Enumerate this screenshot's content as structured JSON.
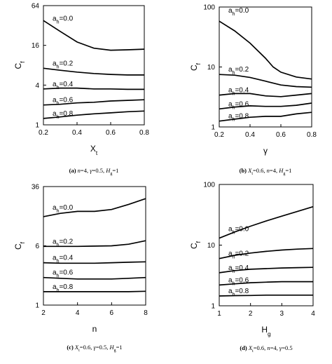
{
  "figure": {
    "panels": [
      {
        "caption": {
          "id": "(a)",
          "parts": [
            {
              "t": "n",
              "it": true
            },
            {
              "t": "=4, "
            },
            {
              "t": "γ",
              "it": true
            },
            {
              "t": "=0.5, "
            },
            {
              "t": "H",
              "it": true
            },
            {
              "t": "g",
              "sub": true
            },
            {
              "t": "=1"
            }
          ]
        },
        "chart_data": {
          "type": "line",
          "title": "",
          "xlabel": {
            "main": "X",
            "sub": "t"
          },
          "ylabel": {
            "main": "C",
            "sub": "f"
          },
          "x_ticks": [
            0.2,
            0.4,
            0.6,
            0.8
          ],
          "x_tick_labels": [
            "0.2",
            "0.4",
            "0.6",
            "0.8"
          ],
          "xlim": [
            0.2,
            0.8
          ],
          "y_scale": "log",
          "y_ticks": [
            1,
            4,
            16,
            64
          ],
          "y_tick_labels": [
            "1",
            "4",
            "16",
            "64"
          ],
          "ylim": [
            1,
            64
          ],
          "grid": false,
          "series": [
            {
              "name": "ah=0.0",
              "label": {
                "main": "a",
                "sub": "h",
                "rest": "=0.0"
              },
              "x": [
                0.2,
                0.3,
                0.4,
                0.5,
                0.6,
                0.7,
                0.8
              ],
              "y": [
                38,
                26,
                18,
                14.5,
                13.5,
                13.7,
                14
              ]
            },
            {
              "name": "ah=0.2",
              "label": {
                "main": "a",
                "sub": "h",
                "rest": "=0.2"
              },
              "x": [
                0.2,
                0.3,
                0.4,
                0.5,
                0.6,
                0.7,
                0.8
              ],
              "y": [
                7.2,
                6.7,
                6.3,
                6.0,
                5.8,
                5.7,
                5.7
              ]
            },
            {
              "name": "ah=0.4",
              "label": {
                "main": "a",
                "sub": "h",
                "rest": "=0.4"
              },
              "x": [
                0.2,
                0.3,
                0.4,
                0.5,
                0.6,
                0.7,
                0.8
              ],
              "y": [
                3.5,
                3.6,
                3.6,
                3.5,
                3.5,
                3.45,
                3.45
              ]
            },
            {
              "name": "ah=0.6",
              "label": {
                "main": "a",
                "sub": "h",
                "rest": "=0.6"
              },
              "x": [
                0.2,
                0.3,
                0.4,
                0.5,
                0.6,
                0.7,
                0.8
              ],
              "y": [
                2.0,
                2.05,
                2.15,
                2.2,
                2.3,
                2.35,
                2.4
              ]
            },
            {
              "name": "ah=0.8",
              "label": {
                "main": "a",
                "sub": "h",
                "rest": "=0.8"
              },
              "x": [
                0.2,
                0.3,
                0.4,
                0.5,
                0.6,
                0.7,
                0.8
              ],
              "y": [
                1.25,
                1.32,
                1.4,
                1.47,
                1.52,
                1.58,
                1.62
              ]
            }
          ]
        }
      },
      {
        "caption": {
          "id": "(b)",
          "parts": [
            {
              "t": "X",
              "it": true
            },
            {
              "t": "t",
              "sub": true
            },
            {
              "t": "=0.6, "
            },
            {
              "t": "n",
              "it": true
            },
            {
              "t": "=4, "
            },
            {
              "t": "H",
              "it": true
            },
            {
              "t": "g",
              "sub": true
            },
            {
              "t": "=1"
            }
          ]
        },
        "chart_data": {
          "type": "line",
          "title": "",
          "xlabel": {
            "main": "γ",
            "sub": ""
          },
          "ylabel": {
            "main": "C",
            "sub": "f"
          },
          "x_ticks": [
            0.2,
            0.4,
            0.6,
            0.8
          ],
          "x_tick_labels": [
            "0.2",
            "0.4",
            "0.6",
            "0.8"
          ],
          "xlim": [
            0.2,
            0.8
          ],
          "y_scale": "log",
          "y_ticks": [
            1,
            10,
            100
          ],
          "y_tick_labels": [
            "1",
            "10",
            "100"
          ],
          "ylim": [
            1,
            100
          ],
          "grid": false,
          "series": [
            {
              "name": "ah=0.0",
              "label": {
                "main": "a",
                "sub": "h",
                "rest": "=0.0"
              },
              "x": [
                0.2,
                0.3,
                0.4,
                0.5,
                0.55,
                0.6,
                0.7,
                0.8
              ],
              "y": [
                58,
                40,
                25,
                14,
                10,
                8.2,
                6.8,
                6.3
              ]
            },
            {
              "name": "ah=0.2",
              "label": {
                "main": "a",
                "sub": "h",
                "rest": "=0.2"
              },
              "x": [
                0.2,
                0.3,
                0.4,
                0.5,
                0.6,
                0.7,
                0.8
              ],
              "y": [
                7.5,
                7.3,
                6.7,
                5.8,
                5.0,
                4.7,
                4.6
              ]
            },
            {
              "name": "ah=0.4",
              "label": {
                "main": "a",
                "sub": "h",
                "rest": "=0.4"
              },
              "x": [
                0.2,
                0.3,
                0.4,
                0.5,
                0.6,
                0.7,
                0.8
              ],
              "y": [
                3.4,
                3.6,
                3.6,
                3.3,
                3.2,
                3.4,
                3.6
              ]
            },
            {
              "name": "ah=0.6",
              "label": {
                "main": "a",
                "sub": "h",
                "rest": "=0.6"
              },
              "x": [
                0.2,
                0.3,
                0.4,
                0.5,
                0.6,
                0.7,
                0.8
              ],
              "y": [
                2.0,
                2.15,
                2.25,
                2.2,
                2.2,
                2.3,
                2.5
              ]
            },
            {
              "name": "ah=0.8",
              "label": {
                "main": "a",
                "sub": "h",
                "rest": "=0.8"
              },
              "x": [
                0.2,
                0.3,
                0.4,
                0.5,
                0.6,
                0.7,
                0.8
              ],
              "y": [
                1.25,
                1.35,
                1.45,
                1.5,
                1.5,
                1.65,
                1.75
              ]
            }
          ]
        }
      },
      {
        "caption": {
          "id": "(c)",
          "parts": [
            {
              "t": "X",
              "it": true
            },
            {
              "t": "t",
              "sub": true
            },
            {
              "t": "=0.6, "
            },
            {
              "t": "γ",
              "it": true
            },
            {
              "t": "=0.5, "
            },
            {
              "t": "H",
              "it": true
            },
            {
              "t": "g",
              "sub": true
            },
            {
              "t": "=1"
            }
          ]
        },
        "chart_data": {
          "type": "line",
          "title": "",
          "xlabel": {
            "main": "n",
            "sub": ""
          },
          "ylabel": {
            "main": "C",
            "sub": "f"
          },
          "x_ticks": [
            2,
            4,
            6,
            8
          ],
          "x_tick_labels": [
            "2",
            "4",
            "6",
            "8"
          ],
          "xlim": [
            2,
            8
          ],
          "y_scale": "log",
          "y_ticks": [
            1,
            6,
            36
          ],
          "y_tick_labels": [
            "1",
            "6",
            "36"
          ],
          "ylim": [
            1,
            36
          ],
          "grid": false,
          "series": [
            {
              "name": "ah=0.0",
              "label": {
                "main": "a",
                "sub": "h",
                "rest": "=0.0"
              },
              "x": [
                2,
                3,
                4,
                5,
                6,
                7,
                8
              ],
              "y": [
                14.5,
                16,
                17,
                17,
                18,
                21,
                25
              ]
            },
            {
              "name": "ah=0.2",
              "label": {
                "main": "a",
                "sub": "h",
                "rest": "=0.2"
              },
              "x": [
                2,
                3,
                4,
                5,
                6,
                7,
                8
              ],
              "y": [
                5.9,
                5.9,
                5.9,
                5.95,
                6.0,
                6.3,
                7.0
              ]
            },
            {
              "name": "ah=0.4",
              "label": {
                "main": "a",
                "sub": "h",
                "rest": "=0.4"
              },
              "x": [
                2,
                3,
                4,
                5,
                6,
                7,
                8
              ],
              "y": [
                3.6,
                3.55,
                3.55,
                3.55,
                3.6,
                3.65,
                3.7
              ]
            },
            {
              "name": "ah=0.6",
              "label": {
                "main": "a",
                "sub": "h",
                "rest": "=0.6"
              },
              "x": [
                2,
                3,
                4,
                5,
                6,
                7,
                8
              ],
              "y": [
                2.3,
                2.25,
                2.2,
                2.2,
                2.2,
                2.25,
                2.3
              ]
            },
            {
              "name": "ah=0.8",
              "label": {
                "main": "a",
                "sub": "h",
                "rest": "=0.8"
              },
              "x": [
                2,
                3,
                4,
                5,
                6,
                7,
                8
              ],
              "y": [
                1.5,
                1.5,
                1.5,
                1.5,
                1.5,
                1.5,
                1.52
              ]
            }
          ]
        }
      },
      {
        "caption": {
          "id": "(d)",
          "parts": [
            {
              "t": "X",
              "it": true
            },
            {
              "t": "t",
              "sub": true
            },
            {
              "t": "=0.6, "
            },
            {
              "t": "n",
              "it": true
            },
            {
              "t": "=4, "
            },
            {
              "t": "γ",
              "it": true
            },
            {
              "t": "=0.5"
            }
          ]
        },
        "chart_data": {
          "type": "line",
          "title": "",
          "xlabel": {
            "main": "H",
            "sub": "g"
          },
          "ylabel": {
            "main": "C",
            "sub": "f"
          },
          "x_ticks": [
            1,
            2,
            3,
            4
          ],
          "x_tick_labels": [
            "1",
            "2",
            "3",
            "4"
          ],
          "xlim": [
            1,
            4
          ],
          "y_scale": "log",
          "y_ticks": [
            1,
            10,
            100
          ],
          "y_tick_labels": [
            "1",
            "10",
            "100"
          ],
          "ylim": [
            1,
            100
          ],
          "grid": false,
          "series": [
            {
              "name": "ah=0.0",
              "label": {
                "main": "a",
                "sub": "h",
                "rest": "=0.0"
              },
              "x": [
                1,
                1.5,
                2,
                2.5,
                3,
                3.5,
                4
              ],
              "y": [
                13,
                16.5,
                20.5,
                25,
                30,
                36,
                43
              ]
            },
            {
              "name": "ah=0.2",
              "label": {
                "main": "a",
                "sub": "h",
                "rest": "=0.2"
              },
              "x": [
                1,
                1.5,
                2,
                2.5,
                3,
                3.5,
                4
              ],
              "y": [
                6.0,
                6.8,
                7.4,
                7.9,
                8.3,
                8.6,
                8.8
              ]
            },
            {
              "name": "ah=0.4",
              "label": {
                "main": "a",
                "sub": "h",
                "rest": "=0.4"
              },
              "x": [
                1,
                1.5,
                2,
                2.5,
                3,
                3.5,
                4
              ],
              "y": [
                3.5,
                3.8,
                4.0,
                4.1,
                4.2,
                4.25,
                4.3
              ]
            },
            {
              "name": "ah=0.6",
              "label": {
                "main": "a",
                "sub": "h",
                "rest": "=0.6"
              },
              "x": [
                1,
                1.5,
                2,
                2.5,
                3,
                3.5,
                4
              ],
              "y": [
                2.2,
                2.3,
                2.4,
                2.45,
                2.5,
                2.5,
                2.5
              ]
            },
            {
              "name": "ah=0.8",
              "label": {
                "main": "a",
                "sub": "h",
                "rest": "=0.8"
              },
              "x": [
                1,
                1.5,
                2,
                2.5,
                3,
                3.5,
                4
              ],
              "y": [
                1.45,
                1.47,
                1.48,
                1.5,
                1.5,
                1.5,
                1.5
              ]
            }
          ]
        }
      }
    ]
  }
}
